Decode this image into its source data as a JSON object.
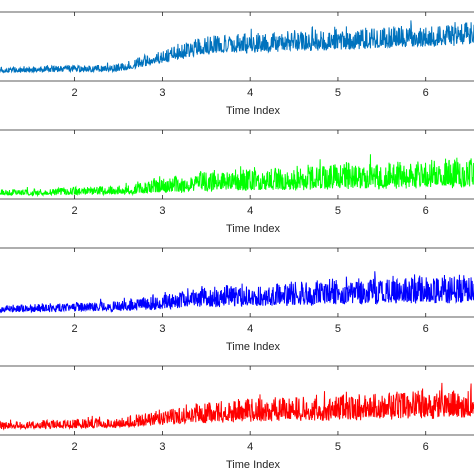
{
  "chart_data": [
    {
      "type": "line",
      "xlabel": "Time Index",
      "ylabel": "",
      "xlim": [
        1.15,
        6.55
      ],
      "ylim": [
        0,
        1
      ],
      "xticks": [
        2,
        3,
        4,
        5,
        6
      ],
      "grid": false,
      "color": "#0072BD",
      "series": [
        {
          "trend": {
            "x": [
              1.15,
              2.5,
              3.5,
              6.55
            ],
            "base": [
              0.13,
              0.15,
              0.42,
              0.56
            ],
            "amplitude": [
              0.08,
              0.1,
              0.26,
              0.32
            ]
          }
        }
      ]
    },
    {
      "type": "line",
      "xlabel": "Time Index",
      "ylabel": "",
      "xlim": [
        1.15,
        6.55
      ],
      "ylim": [
        0,
        1
      ],
      "xticks": [
        2,
        3,
        4,
        5,
        6
      ],
      "grid": false,
      "color": "#00FF00",
      "series": [
        {
          "trend": {
            "x": [
              1.15,
              2.5,
              3.5,
              6.55
            ],
            "base": [
              0.06,
              0.08,
              0.14,
              0.22
            ],
            "amplitude": [
              0.08,
              0.12,
              0.28,
              0.4
            ]
          }
        }
      ]
    },
    {
      "type": "line",
      "xlabel": "Time Index",
      "ylabel": "",
      "xlim": [
        1.15,
        6.55
      ],
      "ylim": [
        0,
        1
      ],
      "xticks": [
        2,
        3,
        4,
        5,
        6
      ],
      "grid": false,
      "color": "#0000FF",
      "series": [
        {
          "trend": {
            "x": [
              1.15,
              2.5,
              3.5,
              6.55
            ],
            "base": [
              0.08,
              0.1,
              0.18,
              0.26
            ],
            "amplitude": [
              0.1,
              0.14,
              0.3,
              0.4
            ]
          }
        }
      ]
    },
    {
      "type": "line",
      "xlabel": "Time Index",
      "ylabel": "",
      "xlim": [
        1.15,
        6.55
      ],
      "ylim": [
        0,
        1
      ],
      "xticks": [
        2,
        3,
        4,
        5,
        6
      ],
      "grid": false,
      "color": "#FF0000",
      "series": [
        {
          "trend": {
            "x": [
              1.15,
              2.5,
              3.5,
              6.55
            ],
            "base": [
              0.1,
              0.12,
              0.22,
              0.3
            ],
            "amplitude": [
              0.1,
              0.14,
              0.3,
              0.4
            ]
          }
        }
      ]
    }
  ]
}
